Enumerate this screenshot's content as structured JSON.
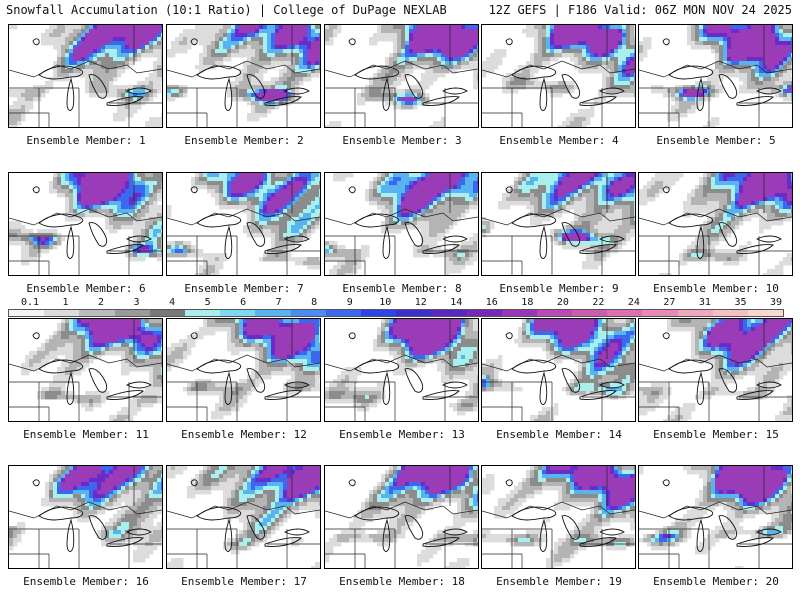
{
  "header": {
    "left": "Snowfall Accumulation (10:1 Ratio) | College of DuPage NEXLAB",
    "right": "12Z GEFS | F186 Valid: 06Z MON NOV 24 2025"
  },
  "panel_label_prefix": "Ensemble Member: ",
  "members": [
    "1",
    "2",
    "3",
    "4",
    "5",
    "6",
    "7",
    "8",
    "9",
    "10",
    "11",
    "12",
    "13",
    "14",
    "15",
    "16",
    "17",
    "18",
    "19",
    "20"
  ],
  "colorbar": {
    "ticks": [
      "0.1",
      "1",
      "2",
      "3",
      "4",
      "5",
      "6",
      "7",
      "8",
      "9",
      "10",
      "12",
      "14",
      "16",
      "18",
      "20",
      "22",
      "24",
      "27",
      "31",
      "35",
      "39"
    ],
    "colors": [
      "#f4f4f4",
      "#dcdcdc",
      "#bcbcbc",
      "#9a9a9a",
      "#787878",
      "#a8f0ee",
      "#7ed8f0",
      "#58b4f0",
      "#4a8cf0",
      "#3c68f0",
      "#2f44e8",
      "#3c2ed0",
      "#5a28c0",
      "#7828b8",
      "#9838b8",
      "#b84cb4",
      "#cc5cb0",
      "#dc70b0",
      "#e88ab8",
      "#f0a8bc",
      "#f4c0c0",
      "#f8d8d0"
    ]
  },
  "snow_levels": [
    {
      "lo": 0.3,
      "color": "#dcdcdc"
    },
    {
      "lo": 0.45,
      "color": "#b4b4b4"
    },
    {
      "lo": 0.6,
      "color": "#8c8c8c"
    },
    {
      "lo": 0.7,
      "color": "#a8f0ee"
    },
    {
      "lo": 0.78,
      "color": "#58b4f0"
    },
    {
      "lo": 0.86,
      "color": "#3c68f0"
    },
    {
      "lo": 0.93,
      "color": "#6a2cc8"
    },
    {
      "lo": 0.98,
      "color": "#9a3cb8"
    }
  ]
}
